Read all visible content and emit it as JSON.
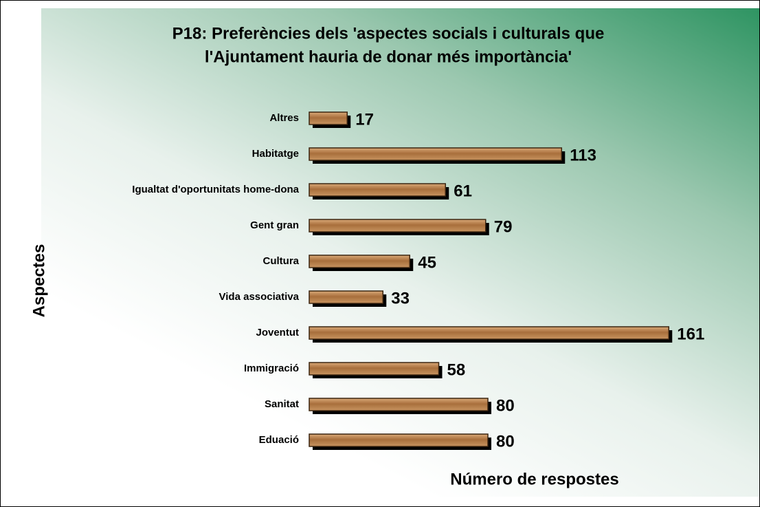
{
  "chart_data": {
    "type": "bar",
    "orientation": "horizontal",
    "title": [
      "P18: Preferències dels 'aspectes socials i culturals que",
      "l'Ajuntament hauria de donar més importància'"
    ],
    "ylabel": "Aspectes",
    "xlabel": "Número de respostes",
    "categories": [
      "Altres",
      "Habitatge",
      "Igualtat d'oportunitats home-dona",
      "Gent gran",
      "Cultura",
      "Vida associativa",
      "Joventut",
      "Immigració",
      "Sanitat",
      "Eduació"
    ],
    "values": [
      17,
      113,
      61,
      79,
      45,
      33,
      161,
      58,
      80,
      80
    ],
    "color": "#b07a45",
    "xlim": [
      0,
      180
    ]
  }
}
